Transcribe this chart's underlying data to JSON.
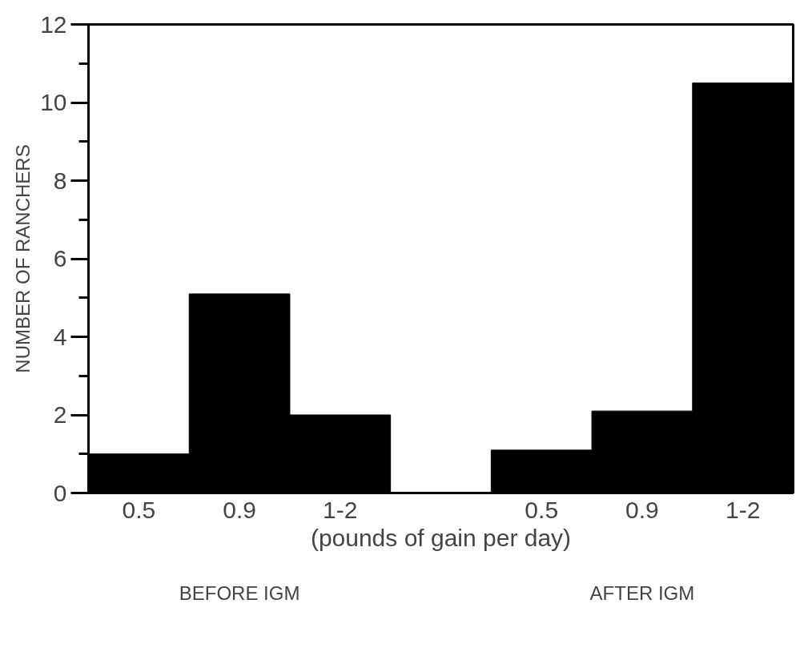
{
  "chart_data": {
    "type": "bar",
    "xlabel": "(pounds of gain per day)",
    "ylabel": "NUMBER OF RANCHERS",
    "categories": [
      "0.5",
      "0.9",
      "1-2",
      null,
      "0.5",
      "0.9",
      "1-2"
    ],
    "values": [
      1,
      5.1,
      2,
      null,
      1.1,
      2.1,
      10.5
    ],
    "color": "#000000",
    "ylim": [
      0,
      12
    ],
    "yticks": [
      0,
      {
        "value": 1,
        "label": null
      },
      2,
      {
        "value": 3,
        "label": null
      },
      4,
      {
        "value": 5,
        "label": null
      },
      6,
      {
        "value": 7,
        "label": null
      },
      8,
      {
        "value": 9,
        "label": null
      },
      10,
      {
        "value": 11,
        "label": null
      },
      12
    ],
    "grid": false,
    "annotations": [
      "BEFORE IGM",
      "AFTER IGM"
    ]
  }
}
